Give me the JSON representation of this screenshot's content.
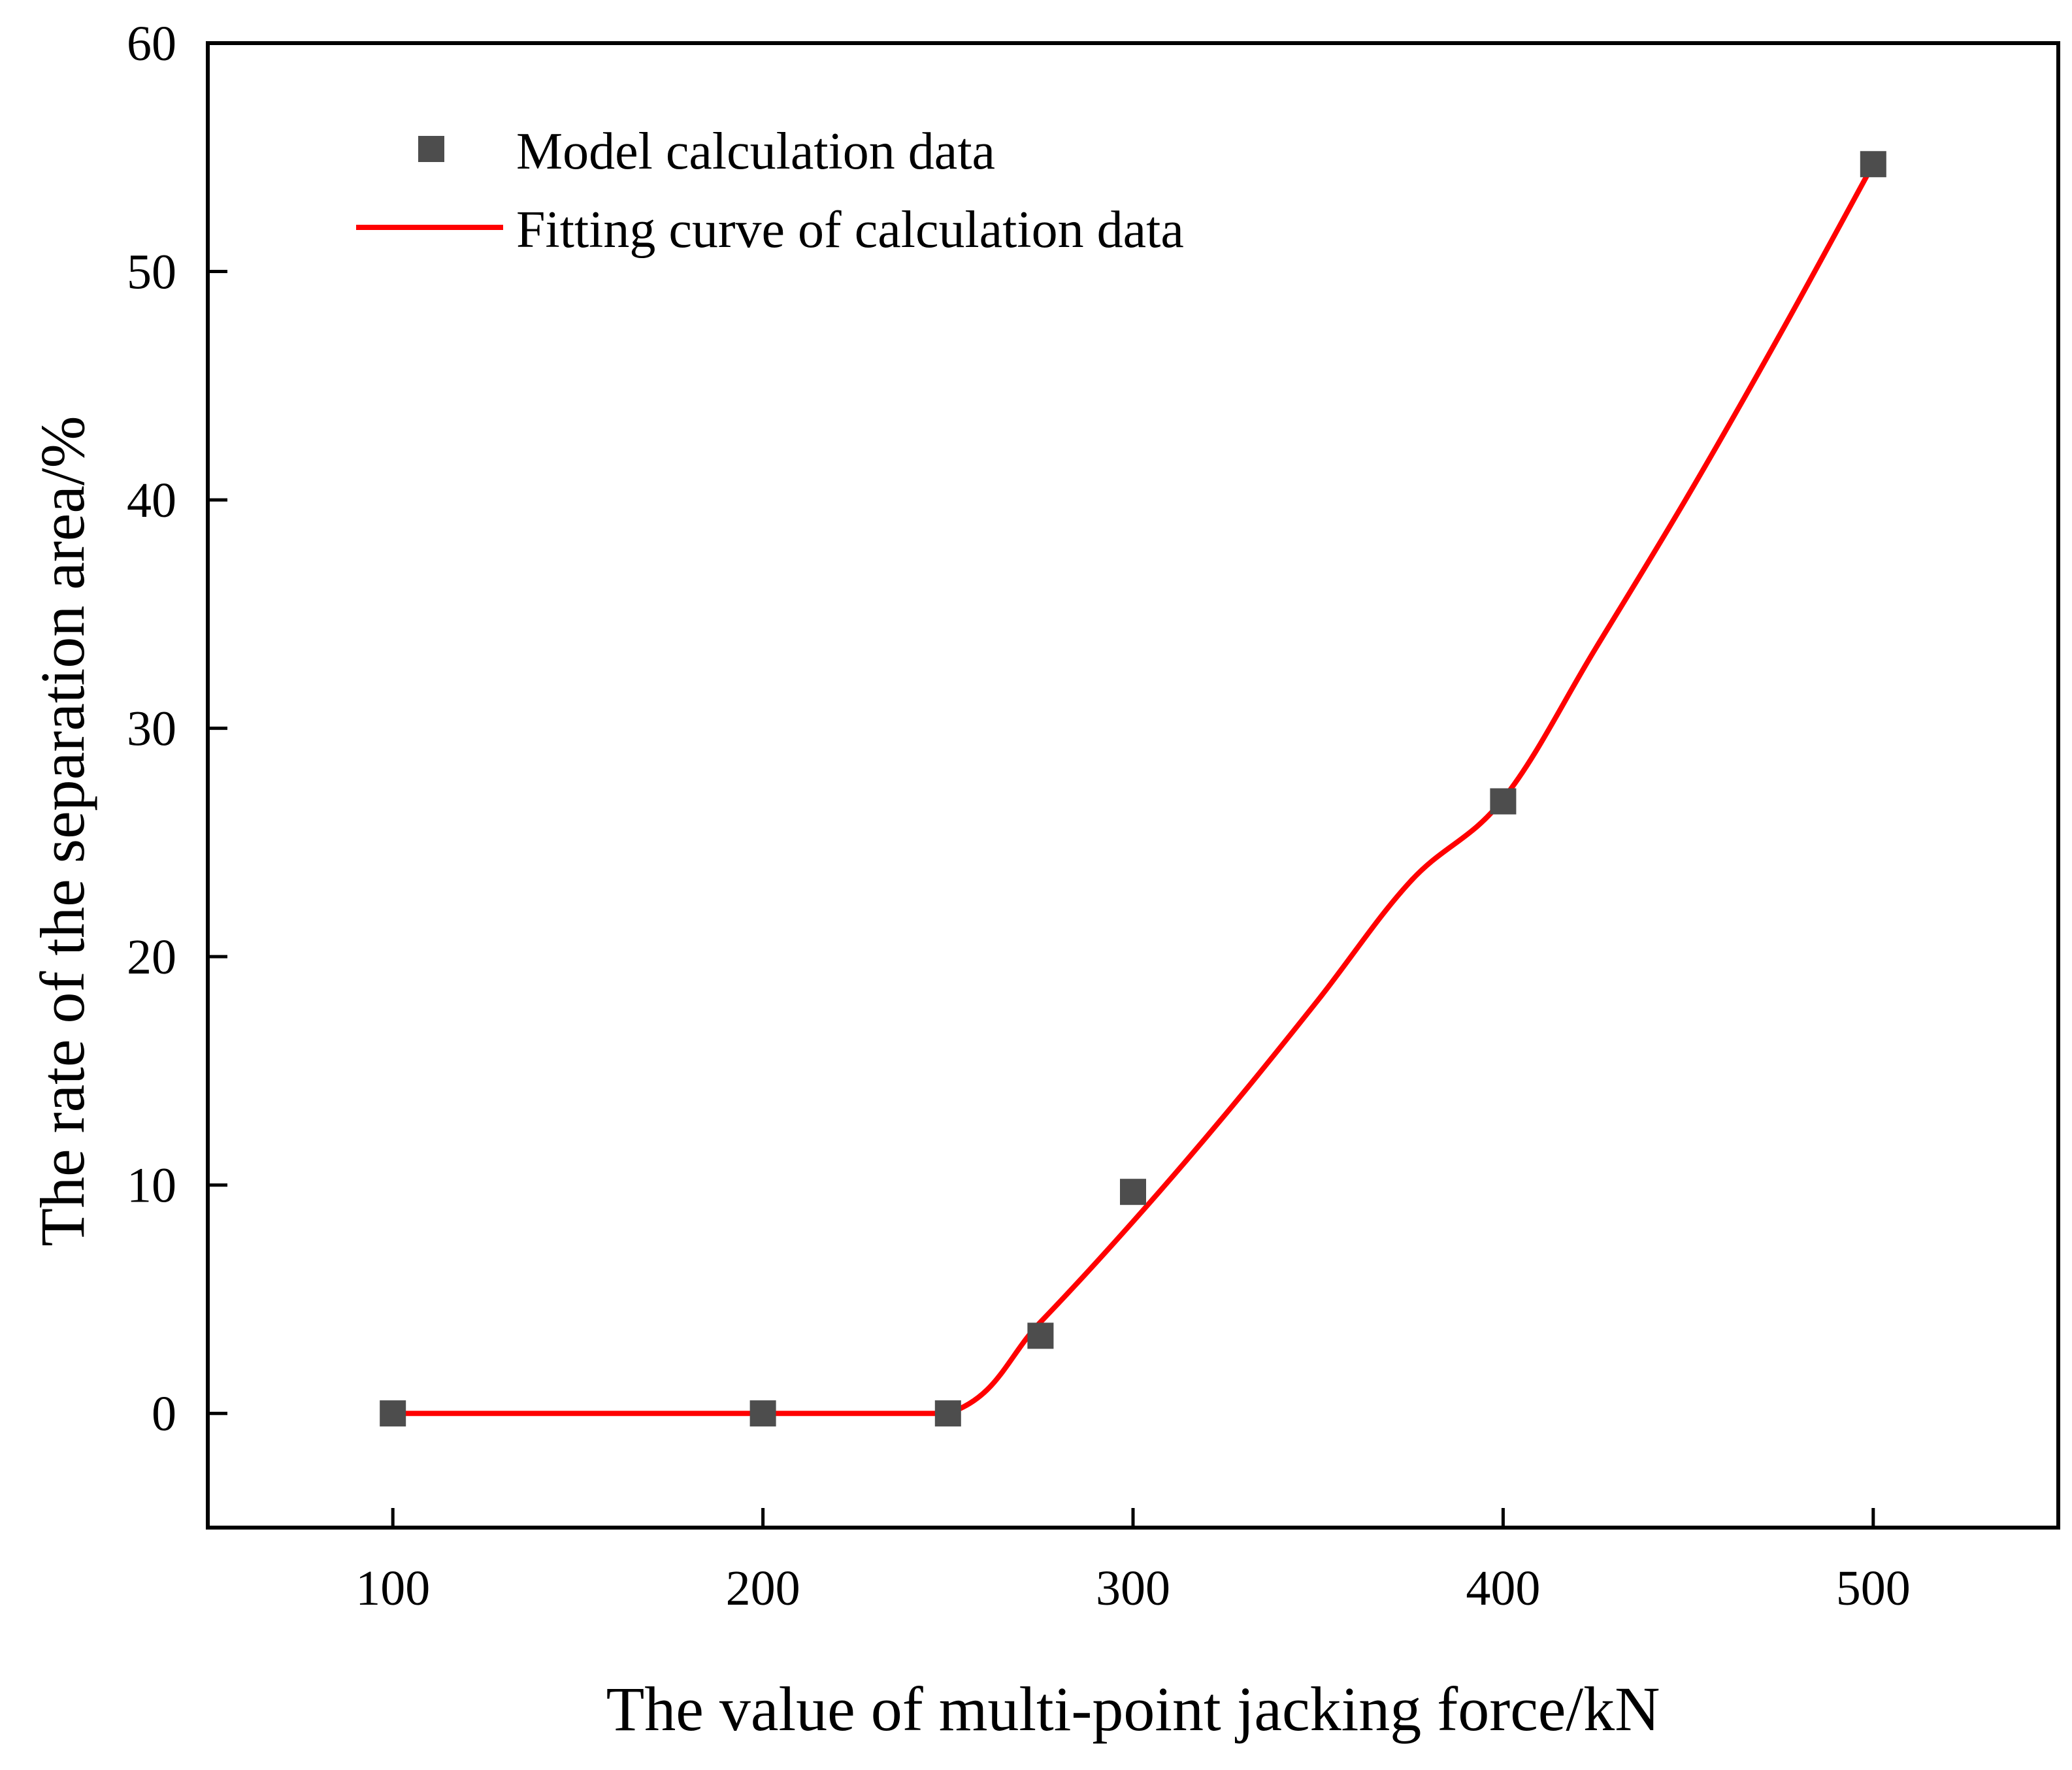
{
  "chart_data": {
    "type": "scatter",
    "title": "",
    "xlabel": "The value of multi-point jacking force/kN",
    "ylabel": "The rate of the separation area/%",
    "xlim": [
      50,
      550
    ],
    "ylim": [
      -5,
      60
    ],
    "xticks": [
      100,
      200,
      300,
      400,
      500
    ],
    "yticks": [
      0,
      10,
      20,
      30,
      40,
      50,
      60
    ],
    "xtick_labels": [
      "100",
      "200",
      "300",
      "400",
      "500"
    ],
    "ytick_labels": [
      "0",
      "10",
      "20",
      "30",
      "40",
      "50",
      "60"
    ],
    "grid": false,
    "legend_position": "top-left",
    "series": [
      {
        "name": "Model calculation data",
        "kind": "scatter",
        "marker": "square",
        "color": "#4d4d4d",
        "x": [
          100,
          200,
          250,
          275,
          300,
          400,
          500
        ],
        "y": [
          0,
          0,
          0,
          3.4,
          9.7,
          26.8,
          54.7
        ]
      },
      {
        "name": "Fitting curve of calculation data",
        "kind": "line",
        "color": "#ff0000",
        "x": [
          100,
          150,
          200,
          250,
          275,
          300,
          325,
          350,
          375,
          400,
          425,
          450,
          475,
          500
        ],
        "y": [
          0,
          0,
          0,
          0,
          4.0,
          8.4,
          13.1,
          18.1,
          23.3,
          26.9,
          33.5,
          40.2,
          47.3,
          54.7
        ]
      }
    ]
  }
}
